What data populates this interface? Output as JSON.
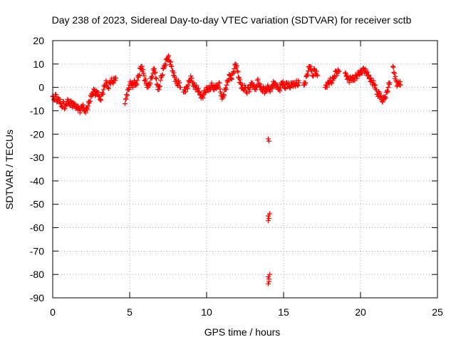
{
  "chart_data": {
    "type": "scatter",
    "title": "Day 238 of 2023, Sidereal Day-to-day VTEC variation (SDTVAR) for receiver sctb",
    "xlabel": "GPS time / hours",
    "ylabel": "SDTVAR / TECUs",
    "xlim": [
      0,
      25
    ],
    "ylim": [
      -90,
      20
    ],
    "xticks": [
      0,
      5,
      10,
      15,
      20,
      25
    ],
    "yticks": [
      20,
      10,
      0,
      -10,
      -20,
      -30,
      -40,
      -50,
      -60,
      -70,
      -80,
      -90
    ],
    "grid": true,
    "marker": "+",
    "color": "#ff0000",
    "series": [
      {
        "name": "sctb",
        "segments": [
          [
            [
              0.0,
              -4
            ],
            [
              0.1,
              -5
            ],
            [
              0.2,
              -3
            ],
            [
              0.3,
              -6
            ],
            [
              0.4,
              -5
            ],
            [
              0.5,
              -7
            ],
            [
              0.6,
              -8
            ],
            [
              0.7,
              -6
            ],
            [
              0.8,
              -9
            ],
            [
              0.9,
              -7
            ],
            [
              1.0,
              -6
            ],
            [
              1.1,
              -7
            ],
            [
              1.2,
              -6
            ],
            [
              1.3,
              -8
            ],
            [
              1.4,
              -7
            ],
            [
              1.5,
              -9
            ],
            [
              1.6,
              -8
            ],
            [
              1.7,
              -9
            ],
            [
              1.8,
              -10
            ],
            [
              1.9,
              -8
            ],
            [
              2.0,
              -9
            ],
            [
              2.1,
              -10
            ],
            [
              2.2,
              -9
            ],
            [
              2.3,
              -8
            ],
            [
              2.4,
              -6
            ],
            [
              2.5,
              -4
            ],
            [
              2.6,
              -2
            ],
            [
              2.7,
              -1
            ],
            [
              2.8,
              -3
            ],
            [
              2.9,
              -2
            ],
            [
              3.0,
              -4
            ],
            [
              3.1,
              -5
            ],
            [
              3.2,
              -3
            ],
            [
              3.3,
              -1
            ],
            [
              3.4,
              1
            ],
            [
              3.5,
              2
            ],
            [
              3.6,
              0
            ],
            [
              3.7,
              2
            ],
            [
              3.8,
              3
            ],
            [
              3.9,
              2
            ],
            [
              4.0,
              3
            ],
            [
              4.1,
              4
            ]
          ],
          [
            [
              4.7,
              -7
            ],
            [
              4.8,
              -3
            ],
            [
              4.9,
              -1
            ],
            [
              5.0,
              1
            ],
            [
              5.1,
              2
            ],
            [
              5.2,
              0
            ],
            [
              5.3,
              3
            ],
            [
              5.4,
              1
            ],
            [
              5.5,
              3
            ],
            [
              5.6,
              5
            ],
            [
              5.7,
              8
            ],
            [
              5.8,
              9
            ],
            [
              5.9,
              6
            ],
            [
              6.0,
              3
            ],
            [
              6.1,
              1
            ],
            [
              6.2,
              0
            ],
            [
              6.3,
              2
            ],
            [
              6.4,
              4
            ],
            [
              6.5,
              6
            ],
            [
              6.6,
              8
            ],
            [
              6.7,
              4
            ],
            [
              6.8,
              1
            ],
            [
              6.9,
              -1
            ],
            [
              7.0,
              3
            ],
            [
              7.1,
              5
            ],
            [
              7.2,
              8
            ],
            [
              7.3,
              10
            ],
            [
              7.4,
              12
            ],
            [
              7.5,
              13
            ],
            [
              7.6,
              11
            ],
            [
              7.7,
              9
            ],
            [
              7.8,
              7
            ],
            [
              7.9,
              5
            ],
            [
              8.0,
              3
            ],
            [
              8.1,
              1
            ],
            [
              8.2,
              2
            ],
            [
              8.3,
              0
            ]
          ],
          [
            [
              8.5,
              -2
            ],
            [
              8.6,
              -1
            ],
            [
              8.7,
              0
            ],
            [
              8.8,
              1
            ],
            [
              8.9,
              3
            ],
            [
              9.0,
              4
            ],
            [
              9.1,
              2
            ],
            [
              9.2,
              1
            ],
            [
              9.3,
              0
            ],
            [
              9.4,
              -1
            ],
            [
              9.5,
              -2
            ],
            [
              9.6,
              -3
            ],
            [
              9.7,
              -4
            ],
            [
              9.8,
              -3
            ],
            [
              9.9,
              -2
            ],
            [
              10.0,
              -1
            ],
            [
              10.1,
              0
            ],
            [
              10.2,
              -1
            ],
            [
              10.3,
              1
            ],
            [
              10.4,
              0
            ],
            [
              10.5,
              -1
            ],
            [
              10.6,
              1
            ],
            [
              10.7,
              0
            ],
            [
              10.8,
              2
            ],
            [
              10.9,
              -2
            ],
            [
              11.0,
              -5
            ],
            [
              11.1,
              -3
            ],
            [
              11.2,
              -1
            ],
            [
              11.3,
              1
            ],
            [
              11.4,
              3
            ],
            [
              11.5,
              5
            ],
            [
              11.6,
              4
            ],
            [
              11.7,
              6
            ],
            [
              11.8,
              8
            ],
            [
              11.9,
              10
            ],
            [
              12.0,
              7
            ],
            [
              12.1,
              4
            ],
            [
              12.2,
              2
            ],
            [
              12.3,
              0
            ],
            [
              12.4,
              -1
            ],
            [
              12.5,
              0
            ],
            [
              12.6,
              -2
            ],
            [
              12.7,
              0
            ],
            [
              12.8,
              -1
            ],
            [
              12.9,
              2
            ],
            [
              13.0,
              0
            ],
            [
              13.1,
              1
            ],
            [
              13.2,
              -1
            ],
            [
              13.3,
              3
            ],
            [
              13.4,
              1
            ],
            [
              13.5,
              0
            ],
            [
              13.6,
              -1
            ],
            [
              13.7,
              0
            ],
            [
              13.8,
              -2
            ],
            [
              13.9,
              -1
            ],
            [
              14.0,
              0
            ],
            [
              14.1,
              -1
            ],
            [
              14.2,
              0
            ],
            [
              14.3,
              1
            ],
            [
              14.4,
              2
            ],
            [
              14.5,
              0
            ],
            [
              14.6,
              1
            ],
            [
              14.7,
              -1
            ],
            [
              14.8,
              0
            ],
            [
              14.9,
              2
            ],
            [
              15.0,
              1
            ],
            [
              15.1,
              0
            ],
            [
              15.2,
              2
            ],
            [
              15.3,
              1
            ],
            [
              15.4,
              0
            ],
            [
              15.5,
              1
            ],
            [
              15.6,
              2
            ],
            [
              15.7,
              1
            ],
            [
              15.8,
              2
            ],
            [
              15.9,
              1
            ],
            [
              16.0,
              2
            ]
          ],
          [
            [
              16.3,
              1
            ],
            [
              16.4,
              2
            ],
            [
              16.5,
              5
            ],
            [
              16.6,
              7
            ],
            [
              16.7,
              9
            ],
            [
              16.8,
              7
            ],
            [
              16.9,
              5
            ],
            [
              17.0,
              8
            ],
            [
              17.1,
              6
            ],
            [
              17.2,
              5
            ]
          ],
          [
            [
              17.7,
              0
            ],
            [
              17.8,
              1
            ],
            [
              17.9,
              2
            ],
            [
              18.0,
              3
            ],
            [
              18.1,
              2
            ],
            [
              18.2,
              3
            ],
            [
              18.3,
              5
            ],
            [
              18.4,
              7
            ],
            [
              18.5,
              6
            ],
            [
              18.6,
              7
            ]
          ],
          [
            [
              19.0,
              6
            ],
            [
              19.1,
              5
            ],
            [
              19.2,
              4
            ],
            [
              19.3,
              3
            ],
            [
              19.4,
              4
            ],
            [
              19.5,
              3
            ],
            [
              19.6,
              4
            ],
            [
              19.7,
              5
            ],
            [
              19.8,
              5
            ],
            [
              19.9,
              6
            ],
            [
              20.0,
              6
            ],
            [
              20.1,
              7
            ],
            [
              20.2,
              8
            ],
            [
              20.3,
              7
            ],
            [
              20.4,
              6
            ],
            [
              20.5,
              5
            ],
            [
              20.6,
              4
            ],
            [
              20.7,
              3
            ],
            [
              20.8,
              2
            ],
            [
              20.9,
              1
            ],
            [
              21.0,
              -1
            ],
            [
              21.1,
              -3
            ],
            [
              21.2,
              -2
            ],
            [
              21.3,
              -4
            ],
            [
              21.4,
              -6
            ],
            [
              21.5,
              -5
            ],
            [
              21.6,
              -4
            ],
            [
              21.7,
              -2
            ],
            [
              21.8,
              0
            ],
            [
              21.9,
              2
            ]
          ],
          [
            [
              22.1,
              9
            ],
            [
              22.2,
              6
            ],
            [
              22.3,
              3
            ],
            [
              22.4,
              1
            ],
            [
              22.5,
              2
            ],
            [
              22.6,
              1
            ]
          ]
        ],
        "outliers": [
          [
            14.0,
            -22
          ],
          [
            14.05,
            -23
          ],
          [
            14.0,
            -55
          ],
          [
            14.05,
            -56
          ],
          [
            14.1,
            -54
          ],
          [
            14.0,
            -57
          ],
          [
            14.0,
            -81
          ],
          [
            14.05,
            -82
          ],
          [
            14.0,
            -84
          ],
          [
            14.1,
            -80
          ],
          [
            14.05,
            -83
          ]
        ]
      }
    ]
  }
}
